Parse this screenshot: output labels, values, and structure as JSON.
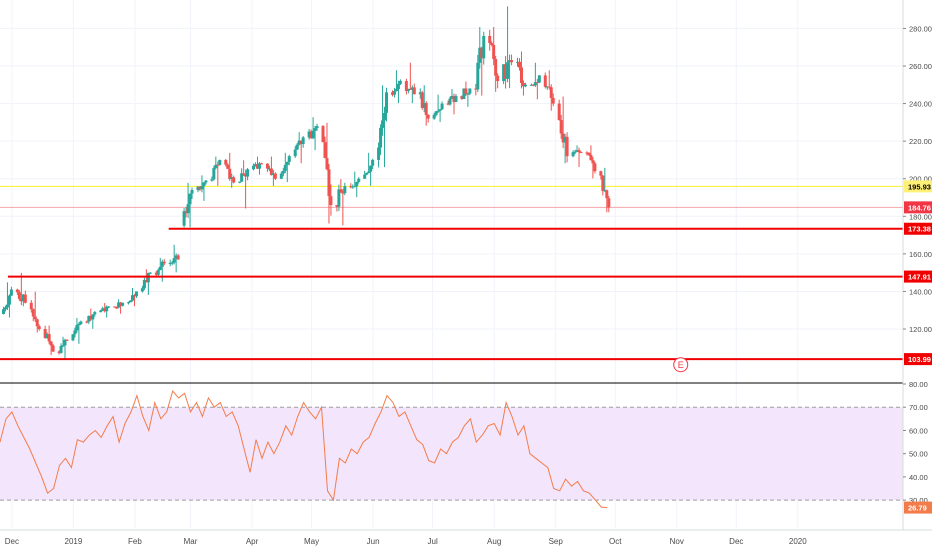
{
  "chart_data": [
    {
      "type": "candlestick",
      "ylim": [
        95,
        293
      ],
      "y_ticks": [
        "120.00",
        "140.00",
        "160.00",
        "180.00",
        "200.00",
        "220.00",
        "240.00",
        "260.00",
        "280.00"
      ],
      "price_labels": [
        {
          "text": "195.93",
          "value": 195.93,
          "bg": "#fff176",
          "fg": "#000000",
          "line": "#f7f02a"
        },
        {
          "text": "184.76",
          "value": 184.76,
          "bg": "#f23645",
          "fg": "#ffffff",
          "line": "#f4a4ac"
        }
      ],
      "levels": [
        {
          "text": "173.38",
          "value": 173.38,
          "x_start": "2019-02-18"
        },
        {
          "text": "147.91",
          "value": 147.91,
          "x_start": "2018-11-29"
        },
        {
          "text": "103.99",
          "value": 103.99,
          "x_start": "2018-11-25"
        }
      ],
      "event_marker": {
        "text": "E",
        "date": "2019-11-03",
        "value": 101
      },
      "colors": {
        "up": "#26a69a",
        "down": "#ef5350",
        "level": "#f00000",
        "grid": "#f0f3fa",
        "axis_text": "#4a4a4a"
      },
      "ohlc_weekly": [
        [
          "2018-11-26",
          128,
          145,
          126,
          141
        ],
        [
          "2018-12-03",
          141,
          150,
          132,
          134
        ],
        [
          "2018-12-10",
          134,
          140,
          118,
          120
        ],
        [
          "2018-12-17",
          120,
          122,
          106,
          108
        ],
        [
          "2018-12-24",
          108,
          116,
          104,
          114
        ],
        [
          "2018-12-31",
          114,
          126,
          112,
          124
        ],
        [
          "2019-01-07",
          124,
          131,
          120,
          129
        ],
        [
          "2019-01-14",
          129,
          134,
          126,
          132
        ],
        [
          "2019-01-21",
          132,
          136,
          128,
          134
        ],
        [
          "2019-01-28",
          134,
          142,
          132,
          140
        ],
        [
          "2019-02-04",
          140,
          152,
          138,
          150
        ],
        [
          "2019-02-11",
          150,
          158,
          145,
          155
        ],
        [
          "2019-02-18",
          155,
          165,
          150,
          157
        ],
        [
          "2019-02-25",
          175,
          198,
          174,
          194
        ],
        [
          "2019-03-04",
          194,
          202,
          188,
          199
        ],
        [
          "2019-03-11",
          199,
          212,
          196,
          210
        ],
        [
          "2019-03-18",
          210,
          214,
          195,
          198
        ],
        [
          "2019-03-25",
          198,
          210,
          184,
          205
        ],
        [
          "2019-04-01",
          205,
          212,
          202,
          208
        ],
        [
          "2019-04-08",
          208,
          212,
          196,
          200
        ],
        [
          "2019-04-15",
          200,
          214,
          198,
          212
        ],
        [
          "2019-04-22",
          212,
          225,
          208,
          222
        ],
        [
          "2019-04-29",
          222,
          233,
          215,
          228
        ],
        [
          "2019-05-06",
          228,
          230,
          176,
          186
        ],
        [
          "2019-05-13",
          186,
          200,
          175,
          196
        ],
        [
          "2019-05-20",
          196,
          204,
          190,
          200
        ],
        [
          "2019-05-27",
          200,
          214,
          196,
          210
        ],
        [
          "2019-06-03",
          210,
          250,
          206,
          246
        ],
        [
          "2019-06-10",
          246,
          258,
          240,
          252
        ],
        [
          "2019-06-17",
          252,
          262,
          240,
          245
        ],
        [
          "2019-06-24",
          245,
          250,
          228,
          232
        ],
        [
          "2019-07-01",
          232,
          245,
          230,
          240
        ],
        [
          "2019-07-08",
          240,
          248,
          234,
          244
        ],
        [
          "2019-07-15",
          244,
          252,
          238,
          248
        ],
        [
          "2019-07-22",
          248,
          281,
          244,
          276
        ],
        [
          "2019-07-29",
          276,
          281,
          246,
          252
        ],
        [
          "2019-08-05",
          252,
          292,
          248,
          262
        ],
        [
          "2019-08-12",
          262,
          268,
          244,
          250
        ],
        [
          "2019-08-19",
          250,
          262,
          242,
          255
        ],
        [
          "2019-08-26",
          255,
          258,
          236,
          240
        ],
        [
          "2019-09-02",
          240,
          244,
          208,
          212
        ],
        [
          "2019-09-09",
          212,
          218,
          206,
          214
        ],
        [
          "2019-09-16",
          214,
          218,
          200,
          204
        ],
        [
          "2019-09-23",
          204,
          206,
          182,
          184.76
        ]
      ]
    },
    {
      "type": "line",
      "ylim": [
        18,
        80
      ],
      "y_ticks": [
        "30.00",
        "40.00",
        "50.00",
        "60.00",
        "70.00",
        "80.00"
      ],
      "band": [
        30,
        70
      ],
      "last_label": "26.79",
      "line_color": "#f47c4a",
      "band_color": "#f3e5fb",
      "series": {
        "x": [
          "2018-11-25",
          "2018-11-28",
          "2018-12-01",
          "2018-12-04",
          "2018-12-07",
          "2018-12-10",
          "2018-12-13",
          "2018-12-16",
          "2018-12-19",
          "2018-12-22",
          "2018-12-25",
          "2018-12-28",
          "2018-12-31",
          "2019-01-03",
          "2019-01-06",
          "2019-01-09",
          "2019-01-12",
          "2019-01-15",
          "2019-01-18",
          "2019-01-21",
          "2019-01-24",
          "2019-01-27",
          "2019-01-30",
          "2019-02-02",
          "2019-02-05",
          "2019-02-08",
          "2019-02-11",
          "2019-02-14",
          "2019-02-17",
          "2019-02-20",
          "2019-02-23",
          "2019-02-26",
          "2019-03-01",
          "2019-03-04",
          "2019-03-07",
          "2019-03-10",
          "2019-03-13",
          "2019-03-16",
          "2019-03-19",
          "2019-03-22",
          "2019-03-25",
          "2019-03-28",
          "2019-03-31",
          "2019-04-03",
          "2019-04-06",
          "2019-04-09",
          "2019-04-12",
          "2019-04-15",
          "2019-04-18",
          "2019-04-21",
          "2019-04-24",
          "2019-04-27",
          "2019-04-30",
          "2019-05-03",
          "2019-05-06",
          "2019-05-09",
          "2019-05-12",
          "2019-05-15",
          "2019-05-18",
          "2019-05-21",
          "2019-05-24",
          "2019-05-27",
          "2019-05-30",
          "2019-06-02",
          "2019-06-05",
          "2019-06-08",
          "2019-06-11",
          "2019-06-14",
          "2019-06-17",
          "2019-06-20",
          "2019-06-23",
          "2019-06-26",
          "2019-06-29",
          "2019-07-02",
          "2019-07-05",
          "2019-07-08",
          "2019-07-11",
          "2019-07-14",
          "2019-07-17",
          "2019-07-20",
          "2019-07-23",
          "2019-07-26",
          "2019-07-29",
          "2019-08-01",
          "2019-08-04",
          "2019-08-07",
          "2019-08-10",
          "2019-08-13",
          "2019-08-16",
          "2019-08-19",
          "2019-08-22",
          "2019-08-25",
          "2019-08-28",
          "2019-08-31",
          "2019-09-03",
          "2019-09-06",
          "2019-09-09",
          "2019-09-12",
          "2019-09-15",
          "2019-09-18",
          "2019-09-21",
          "2019-09-24",
          "2019-09-27"
        ],
        "y": [
          55,
          65,
          68,
          62,
          57,
          52,
          46,
          40,
          33,
          35,
          45,
          48,
          44,
          56,
          55,
          58,
          60,
          57,
          62,
          66,
          55,
          63,
          68,
          75,
          66,
          60,
          72,
          65,
          68,
          77,
          74,
          76,
          68,
          72,
          66,
          74,
          70,
          72,
          66,
          68,
          62,
          52,
          42,
          56,
          48,
          55,
          50,
          55,
          62,
          58,
          66,
          72,
          68,
          65,
          70,
          34,
          30,
          48,
          46,
          52,
          50,
          55,
          57,
          63,
          68,
          75,
          72,
          66,
          68,
          62,
          56,
          54,
          47,
          46,
          52,
          50,
          55,
          57,
          62,
          65,
          55,
          58,
          62,
          63,
          58,
          72,
          66,
          58,
          62,
          50,
          48,
          46,
          44,
          35,
          34,
          39,
          36,
          38,
          34,
          33,
          30,
          27,
          26.79
        ]
      }
    }
  ],
  "x_axis": {
    "ticks": [
      {
        "text": "Dec",
        "date": "2018-12-01"
      },
      {
        "text": "2019",
        "date": "2019-01-01"
      },
      {
        "text": "Feb",
        "date": "2019-02-01"
      },
      {
        "text": "Mar",
        "date": "2019-03-01"
      },
      {
        "text": "Apr",
        "date": "2019-04-01"
      },
      {
        "text": "May",
        "date": "2019-05-01"
      },
      {
        "text": "Jun",
        "date": "2019-06-01"
      },
      {
        "text": "Jul",
        "date": "2019-07-01"
      },
      {
        "text": "Aug",
        "date": "2019-08-01"
      },
      {
        "text": "Sep",
        "date": "2019-09-01"
      },
      {
        "text": "Oct",
        "date": "2019-10-01"
      },
      {
        "text": "Nov",
        "date": "2019-11-01"
      },
      {
        "text": "Dec",
        "date": "2019-12-01"
      },
      {
        "text": "2020",
        "date": "2020-01-01"
      }
    ],
    "range": [
      "2018-11-25",
      "2020-02-23"
    ]
  }
}
